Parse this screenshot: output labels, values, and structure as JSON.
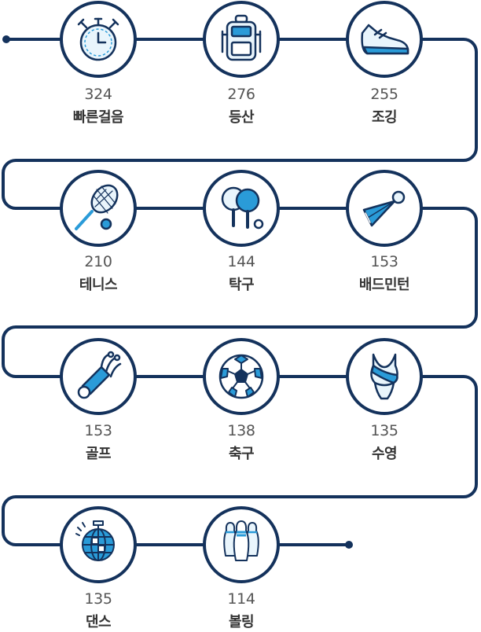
{
  "chart_data": {
    "type": "timeline",
    "title": "",
    "items": [
      {
        "label": "빠른걸음",
        "value": 324,
        "icon": "stopwatch-icon"
      },
      {
        "label": "등산",
        "value": 276,
        "icon": "backpack-icon"
      },
      {
        "label": "조깅",
        "value": 255,
        "icon": "running-shoe-icon"
      },
      {
        "label": "테니스",
        "value": 210,
        "icon": "tennis-racket-icon"
      },
      {
        "label": "탁구",
        "value": 144,
        "icon": "ping-pong-paddle-icon"
      },
      {
        "label": "배드민턴",
        "value": 153,
        "icon": "shuttlecock-icon"
      },
      {
        "label": "골프",
        "value": 153,
        "icon": "golf-bag-icon"
      },
      {
        "label": "축구",
        "value": 138,
        "icon": "soccer-ball-icon"
      },
      {
        "label": "수영",
        "value": 135,
        "icon": "swimsuit-icon"
      },
      {
        "label": "댄스",
        "value": 135,
        "icon": "disco-ball-icon"
      },
      {
        "label": "볼링",
        "value": 114,
        "icon": "bowling-pins-icon"
      }
    ]
  },
  "colors": {
    "navy": "#14325c",
    "accent": "#2a9bd8",
    "white": "#ffffff"
  }
}
